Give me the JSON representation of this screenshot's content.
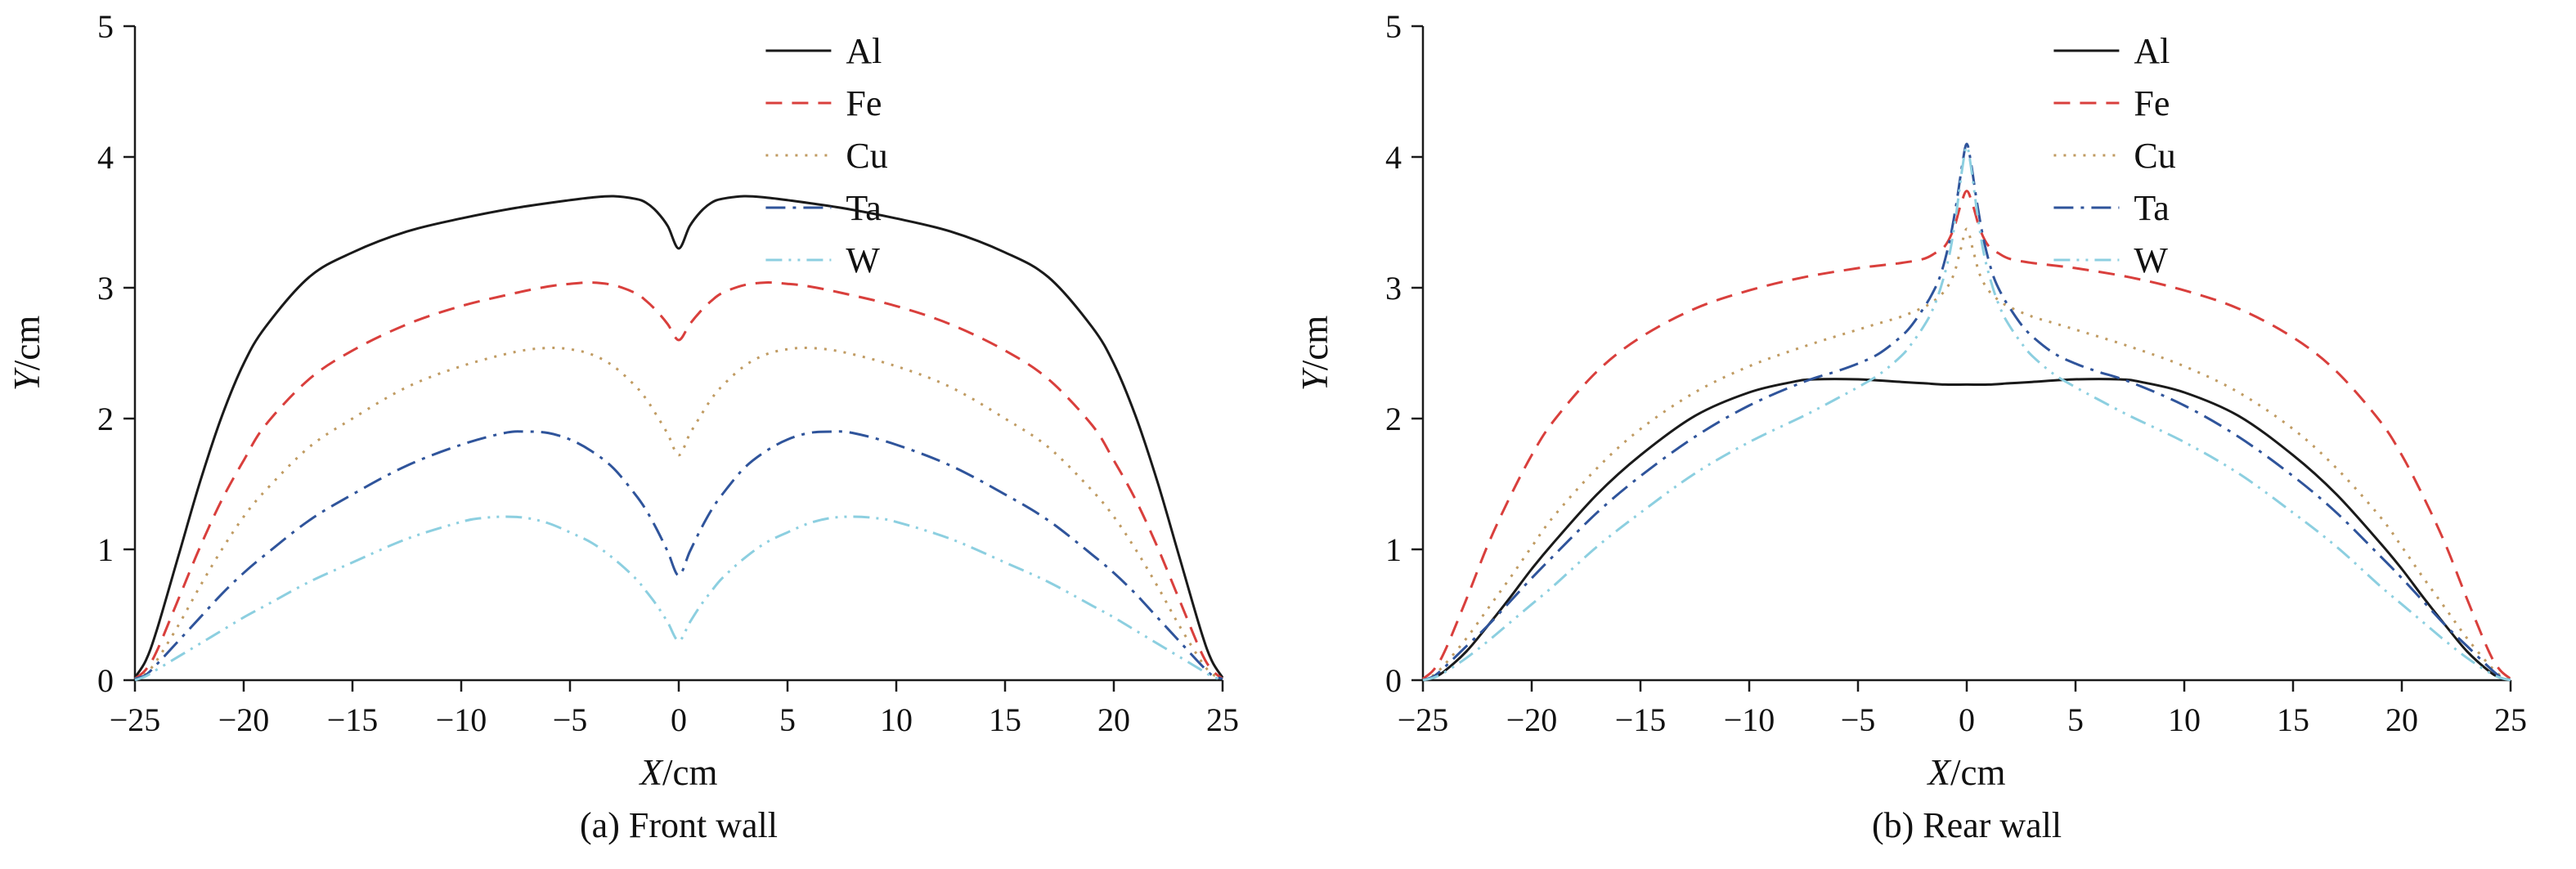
{
  "figure": {
    "background": "#ffffff",
    "text_color": "#111111"
  },
  "chart_data": [
    {
      "type": "line",
      "caption": "(a) Front wall",
      "xlabel": "X/cm",
      "ylabel": "Y/cm",
      "xlim": [
        -25,
        25
      ],
      "ylim": [
        0,
        5
      ],
      "xticks": [
        -25,
        -20,
        -15,
        -10,
        -5,
        0,
        5,
        10,
        15,
        20,
        25
      ],
      "yticks": [
        0,
        1,
        2,
        3,
        4,
        5
      ],
      "grid": false,
      "legend_position": "top-right-inside",
      "series": [
        {
          "name": "Al",
          "color": "#1a1a1a",
          "style": "solid",
          "x": [
            -25,
            -24.5,
            -24,
            -23,
            -22,
            -21,
            -20,
            -19,
            -17,
            -15,
            -12.5,
            -10,
            -7.5,
            -5,
            -4,
            -3,
            -2,
            -1.5,
            -1,
            -0.5,
            0,
            0.5,
            1,
            1.5,
            2,
            3,
            4,
            5,
            7.5,
            10,
            12.5,
            15,
            17,
            19,
            20,
            21,
            22,
            23,
            24,
            24.5,
            25
          ],
          "y": [
            0.02,
            0.15,
            0.38,
            0.95,
            1.52,
            2.02,
            2.42,
            2.7,
            3.08,
            3.27,
            3.43,
            3.53,
            3.61,
            3.67,
            3.69,
            3.7,
            3.68,
            3.65,
            3.58,
            3.47,
            3.3,
            3.47,
            3.58,
            3.65,
            3.68,
            3.7,
            3.69,
            3.67,
            3.61,
            3.53,
            3.43,
            3.27,
            3.08,
            2.7,
            2.42,
            2.02,
            1.52,
            0.95,
            0.38,
            0.15,
            0.02
          ]
        },
        {
          "name": "Fe",
          "color": "#d93f3c",
          "style": "dashed",
          "x": [
            -25,
            -24.5,
            -24,
            -23,
            -22,
            -21,
            -20,
            -19,
            -17,
            -15,
            -12.5,
            -10,
            -7.5,
            -6,
            -5,
            -4,
            -3,
            -2,
            -1.5,
            -1,
            -0.5,
            0,
            0.5,
            1,
            1.5,
            2,
            3,
            4,
            5,
            6,
            7.5,
            10,
            12.5,
            15,
            17,
            19,
            20,
            21,
            22,
            23,
            24,
            24.5,
            25
          ],
          "y": [
            0.01,
            0.08,
            0.22,
            0.62,
            1.02,
            1.38,
            1.68,
            1.95,
            2.3,
            2.52,
            2.72,
            2.86,
            2.96,
            3.01,
            3.03,
            3.04,
            3.02,
            2.96,
            2.9,
            2.82,
            2.72,
            2.6,
            2.72,
            2.82,
            2.9,
            2.96,
            3.02,
            3.04,
            3.03,
            3.01,
            2.96,
            2.86,
            2.72,
            2.52,
            2.3,
            1.95,
            1.68,
            1.38,
            1.02,
            0.62,
            0.22,
            0.08,
            0.01
          ]
        },
        {
          "name": "Cu",
          "color": "#c09b62",
          "style": "dotted",
          "x": [
            -25,
            -24.5,
            -24,
            -23,
            -22,
            -21,
            -20,
            -19,
            -17,
            -15,
            -12.5,
            -10,
            -7.5,
            -6,
            -5,
            -4,
            -3,
            -2,
            -1.5,
            -1,
            -0.5,
            0,
            0.5,
            1,
            1.5,
            2,
            3,
            4,
            5,
            6,
            7.5,
            10,
            12.5,
            15,
            17,
            19,
            20,
            21,
            22,
            23,
            24,
            24.5,
            25
          ],
          "y": [
            0.01,
            0.05,
            0.15,
            0.42,
            0.72,
            1.0,
            1.25,
            1.45,
            1.78,
            2.0,
            2.24,
            2.4,
            2.51,
            2.54,
            2.53,
            2.49,
            2.4,
            2.25,
            2.15,
            2.02,
            1.88,
            1.72,
            1.88,
            2.02,
            2.15,
            2.25,
            2.4,
            2.49,
            2.53,
            2.54,
            2.51,
            2.4,
            2.24,
            2.0,
            1.78,
            1.45,
            1.25,
            1.0,
            0.72,
            0.42,
            0.15,
            0.05,
            0.01
          ]
        },
        {
          "name": "Ta",
          "color": "#2f549b",
          "style": "dash-dot",
          "x": [
            -25,
            -24.5,
            -24,
            -23,
            -22,
            -21,
            -20,
            -19,
            -17,
            -15,
            -12.5,
            -10,
            -8,
            -7,
            -6,
            -5,
            -4,
            -3,
            -2,
            -1.5,
            -1,
            -0.5,
            0,
            0.5,
            1,
            1.5,
            2,
            3,
            4,
            5,
            6,
            7,
            8,
            10,
            12.5,
            15,
            17,
            19,
            20,
            21,
            22,
            23,
            24,
            24.5,
            25
          ],
          "y": [
            0.01,
            0.04,
            0.12,
            0.3,
            0.48,
            0.66,
            0.82,
            0.96,
            1.22,
            1.42,
            1.64,
            1.8,
            1.89,
            1.9,
            1.89,
            1.84,
            1.75,
            1.62,
            1.42,
            1.3,
            1.15,
            0.98,
            0.8,
            0.98,
            1.15,
            1.3,
            1.42,
            1.62,
            1.75,
            1.84,
            1.89,
            1.9,
            1.89,
            1.8,
            1.64,
            1.42,
            1.22,
            0.96,
            0.82,
            0.66,
            0.48,
            0.3,
            0.12,
            0.04,
            0.01
          ]
        },
        {
          "name": "W",
          "color": "#8ccfe0",
          "style": "dash-dot-dot",
          "x": [
            -25,
            -24.5,
            -24,
            -23,
            -22,
            -21,
            -20,
            -19,
            -17,
            -15,
            -12.5,
            -10,
            -9,
            -8,
            -7,
            -6,
            -5,
            -4,
            -3,
            -2,
            -1.5,
            -1,
            -0.5,
            0,
            0.5,
            1,
            1.5,
            2,
            3,
            4,
            5,
            6,
            7,
            8,
            9,
            10,
            12.5,
            15,
            17,
            19,
            20,
            21,
            22,
            23,
            24,
            24.5,
            25
          ],
          "y": [
            0.0,
            0.03,
            0.08,
            0.18,
            0.28,
            0.38,
            0.48,
            0.57,
            0.75,
            0.9,
            1.08,
            1.21,
            1.24,
            1.25,
            1.24,
            1.2,
            1.13,
            1.05,
            0.93,
            0.78,
            0.68,
            0.57,
            0.44,
            0.3,
            0.44,
            0.57,
            0.68,
            0.78,
            0.93,
            1.05,
            1.13,
            1.2,
            1.24,
            1.25,
            1.24,
            1.21,
            1.08,
            0.9,
            0.75,
            0.57,
            0.48,
            0.38,
            0.28,
            0.18,
            0.08,
            0.03,
            0.0
          ]
        }
      ]
    },
    {
      "type": "line",
      "caption": "(b) Rear wall",
      "xlabel": "X/cm",
      "ylabel": "Y/cm",
      "xlim": [
        -25,
        25
      ],
      "ylim": [
        0,
        5
      ],
      "xticks": [
        -25,
        -20,
        -15,
        -10,
        -5,
        0,
        5,
        10,
        15,
        20,
        25
      ],
      "yticks": [
        0,
        1,
        2,
        3,
        4,
        5
      ],
      "grid": false,
      "legend_position": "top-right-inside",
      "series": [
        {
          "name": "Al",
          "color": "#1a1a1a",
          "style": "solid",
          "x": [
            -25,
            -24.5,
            -24,
            -23,
            -22,
            -21,
            -20,
            -19,
            -17,
            -15,
            -12.5,
            -10,
            -8,
            -7,
            -5,
            -3,
            -2,
            -1,
            0,
            1,
            2,
            3,
            5,
            7,
            8,
            10,
            12.5,
            15,
            17,
            19,
            20,
            21,
            22,
            23,
            24,
            24.5,
            25
          ],
          "y": [
            0.0,
            0.02,
            0.07,
            0.22,
            0.42,
            0.63,
            0.85,
            1.05,
            1.42,
            1.72,
            2.02,
            2.2,
            2.28,
            2.3,
            2.3,
            2.28,
            2.27,
            2.26,
            2.26,
            2.26,
            2.27,
            2.28,
            2.3,
            2.3,
            2.28,
            2.2,
            2.02,
            1.72,
            1.42,
            1.05,
            0.85,
            0.63,
            0.42,
            0.22,
            0.07,
            0.02,
            0.0
          ]
        },
        {
          "name": "Fe",
          "color": "#d93f3c",
          "style": "dashed",
          "x": [
            -25,
            -24.5,
            -24,
            -23,
            -22,
            -21,
            -20,
            -19,
            -17,
            -15,
            -12.5,
            -10,
            -7.5,
            -5,
            -4,
            -3,
            -2,
            -1.5,
            -1,
            -0.6,
            -0.3,
            0,
            0.3,
            0.6,
            1,
            1.5,
            2,
            3,
            4,
            5,
            7.5,
            10,
            12.5,
            15,
            17,
            19,
            20,
            21,
            22,
            23,
            24,
            24.5,
            25
          ],
          "y": [
            0.01,
            0.08,
            0.22,
            0.62,
            1.04,
            1.4,
            1.72,
            1.98,
            2.36,
            2.62,
            2.84,
            2.98,
            3.08,
            3.15,
            3.17,
            3.19,
            3.22,
            3.26,
            3.32,
            3.45,
            3.62,
            3.74,
            3.62,
            3.45,
            3.32,
            3.26,
            3.22,
            3.19,
            3.17,
            3.15,
            3.08,
            2.98,
            2.84,
            2.62,
            2.36,
            1.98,
            1.72,
            1.4,
            1.04,
            0.62,
            0.22,
            0.08,
            0.01
          ]
        },
        {
          "name": "Cu",
          "color": "#c09b62",
          "style": "dotted",
          "x": [
            -25,
            -24.5,
            -24,
            -23,
            -22,
            -21,
            -20,
            -19,
            -17,
            -15,
            -12.5,
            -10,
            -7.5,
            -5,
            -4,
            -3,
            -2,
            -1.5,
            -1,
            -0.6,
            -0.3,
            0,
            0.3,
            0.6,
            1,
            1.5,
            2,
            3,
            4,
            5,
            7.5,
            10,
            12.5,
            15,
            17,
            19,
            20,
            21,
            22,
            23,
            24,
            24.5,
            25
          ],
          "y": [
            0.0,
            0.04,
            0.12,
            0.32,
            0.55,
            0.78,
            1.02,
            1.25,
            1.62,
            1.92,
            2.2,
            2.4,
            2.55,
            2.68,
            2.73,
            2.78,
            2.85,
            2.9,
            2.98,
            3.1,
            3.28,
            3.45,
            3.28,
            3.1,
            2.98,
            2.9,
            2.85,
            2.78,
            2.73,
            2.68,
            2.55,
            2.4,
            2.2,
            1.92,
            1.62,
            1.25,
            1.02,
            0.78,
            0.55,
            0.32,
            0.12,
            0.04,
            0.0
          ]
        },
        {
          "name": "Ta",
          "color": "#2f549b",
          "style": "dash-dot",
          "x": [
            -25,
            -24.5,
            -24,
            -23,
            -22,
            -21,
            -20,
            -19,
            -17,
            -15,
            -12.5,
            -10,
            -7.5,
            -6,
            -5,
            -4,
            -3,
            -2.5,
            -2,
            -1.6,
            -1.2,
            -0.8,
            -0.5,
            -0.2,
            0,
            0.2,
            0.5,
            0.8,
            1.2,
            1.6,
            2,
            2.5,
            3,
            4,
            5,
            6,
            7.5,
            10,
            12.5,
            15,
            17,
            19,
            20,
            21,
            22,
            23,
            24,
            24.5,
            25
          ],
          "y": [
            0.0,
            0.03,
            0.1,
            0.26,
            0.42,
            0.6,
            0.78,
            0.95,
            1.28,
            1.56,
            1.86,
            2.1,
            2.28,
            2.36,
            2.42,
            2.5,
            2.63,
            2.72,
            2.84,
            2.95,
            3.1,
            3.35,
            3.62,
            3.95,
            4.1,
            3.95,
            3.62,
            3.35,
            3.1,
            2.95,
            2.84,
            2.72,
            2.63,
            2.5,
            2.42,
            2.36,
            2.28,
            2.1,
            1.86,
            1.56,
            1.28,
            0.95,
            0.78,
            0.6,
            0.42,
            0.26,
            0.1,
            0.03,
            0.0
          ]
        },
        {
          "name": "W",
          "color": "#8ccfe0",
          "style": "dash-dot-dot",
          "x": [
            -25,
            -24.5,
            -24,
            -23,
            -22,
            -21,
            -20,
            -19,
            -17,
            -15,
            -12.5,
            -10,
            -7.5,
            -6,
            -5,
            -4,
            -3,
            -2.5,
            -2,
            -1.6,
            -1.2,
            -0.8,
            -0.5,
            -0.2,
            0,
            0.2,
            0.5,
            0.8,
            1.2,
            1.6,
            2,
            2.5,
            3,
            4,
            5,
            6,
            7.5,
            10,
            12.5,
            15,
            17,
            19,
            20,
            21,
            22,
            23,
            24,
            24.5,
            25
          ],
          "y": [
            0.0,
            0.02,
            0.06,
            0.17,
            0.3,
            0.44,
            0.58,
            0.72,
            1.02,
            1.28,
            1.58,
            1.82,
            2.02,
            2.15,
            2.24,
            2.34,
            2.48,
            2.58,
            2.7,
            2.82,
            3.0,
            3.25,
            3.55,
            3.92,
            4.08,
            3.92,
            3.55,
            3.25,
            3.0,
            2.82,
            2.7,
            2.58,
            2.48,
            2.34,
            2.24,
            2.15,
            2.02,
            1.82,
            1.58,
            1.28,
            1.02,
            0.72,
            0.58,
            0.44,
            0.3,
            0.17,
            0.06,
            0.02,
            0.0
          ]
        }
      ]
    }
  ]
}
